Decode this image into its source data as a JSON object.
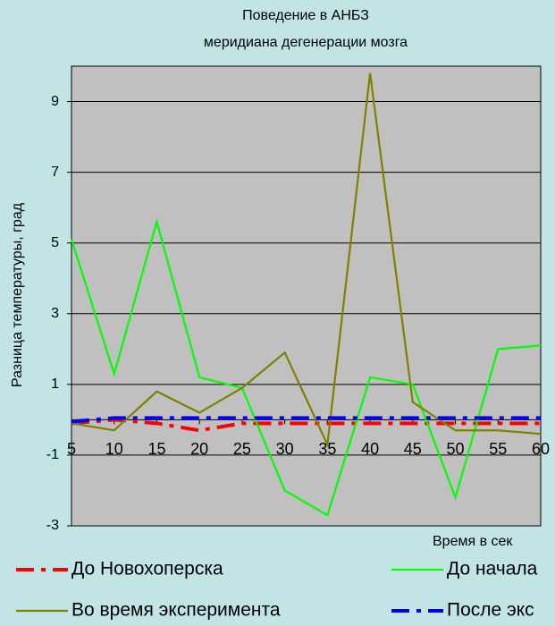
{
  "chart_data": {
    "type": "line",
    "title": "Поведение в АНБЗ",
    "subtitle": "меридиана дегенерации мозга",
    "y_label": "Разница температуры, град",
    "x_label": "Время в сек",
    "categories": [
      "5",
      "10",
      "15",
      "20",
      "25",
      "30",
      "35",
      "40",
      "45",
      "50",
      "55",
      "60"
    ],
    "series": [
      {
        "name": "До Новохоперска",
        "color": "#ff0000",
        "dashed": true,
        "values": [
          -0.1,
          0,
          -0.1,
          -0.3,
          -0.1,
          -0.1,
          -0.1,
          -0.1,
          -0.1,
          -0.1,
          -0.1,
          -0.1
        ]
      },
      {
        "name": "До начала",
        "color": "#00ff00",
        "dashed": false,
        "values": [
          5.1,
          1.3,
          5.6,
          1.2,
          0.9,
          -2.0,
          -2.7,
          1.2,
          1.0,
          -2.2,
          2.0,
          2.1
        ]
      },
      {
        "name": "Во время эксперимента",
        "color": "#808000",
        "dashed": false,
        "values": [
          -0.1,
          -0.3,
          0.8,
          0.2,
          0.9,
          1.9,
          -0.7,
          9.8,
          0.5,
          -0.3,
          -0.3,
          -0.4
        ]
      },
      {
        "name": "После экс",
        "color": "#0000ff",
        "dashed": true,
        "values": [
          -0.05,
          0.05,
          0.05,
          0.05,
          0.05,
          0.05,
          0.05,
          0.05,
          0.05,
          0.05,
          0.05,
          0.05
        ]
      }
    ],
    "ylim": [
      -3,
      10
    ],
    "yticks": [
      -3,
      -1,
      1,
      3,
      5,
      7,
      9
    ],
    "grid": true
  }
}
